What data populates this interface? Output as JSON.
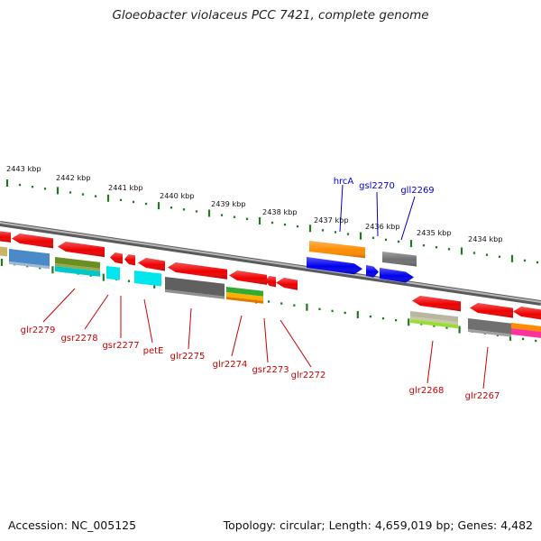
{
  "title": "Gloeobacter violaceus PCC 7421, complete genome",
  "footer": {
    "accession": "Accession: NC_005125",
    "stats": "Topology: circular; Length: 4,659,019 bp; Genes: 4,482"
  },
  "colors": {
    "tick_green": "#1f7a1f",
    "label_top": "#0000cc",
    "label_bottom": "#cc0000",
    "backbone": "#8a8a8a"
  },
  "scale_labels": [
    "2443 kbp",
    "2442 kbp",
    "2441 kbp",
    "2440 kbp",
    "2439 kbp",
    "2438 kbp",
    "2437 kbp",
    "2436 kbp",
    "2435 kbp",
    "2434 kbp"
  ],
  "upper_gene_labels": [
    "hrcA",
    "gsl2270",
    "gll2269"
  ],
  "lower_gene_labels": [
    "glr2279",
    "gsr2278",
    "gsr2277",
    "petE",
    "glr2275",
    "glr2274",
    "gsr2273",
    "glr2272",
    "glr2268",
    "glr2267"
  ]
}
